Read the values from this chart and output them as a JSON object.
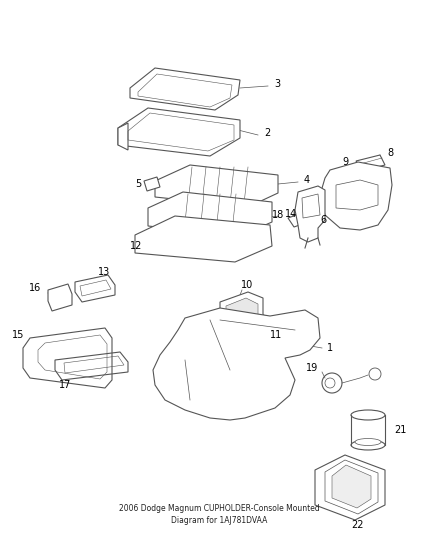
{
  "title": "2006 Dodge Magnum CUPHOLDER-Console Mounted\nDiagram for 1AJ781DVAA",
  "background_color": "#ffffff",
  "line_color": "#555555",
  "label_color": "#000000",
  "figsize": [
    4.38,
    5.33
  ],
  "dpi": 100
}
